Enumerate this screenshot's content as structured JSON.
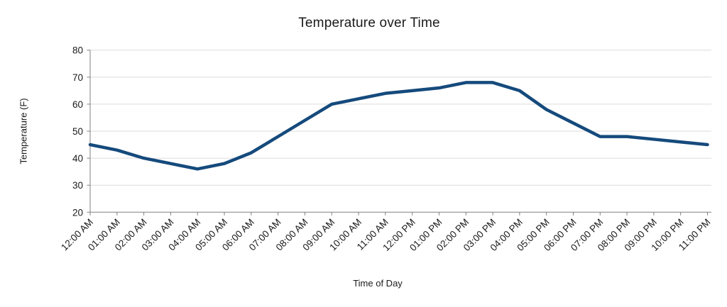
{
  "chart_data": {
    "type": "line",
    "title": "Temperature over Time",
    "xlabel": "Time of Day",
    "ylabel": "Temperature (F)",
    "categories": [
      "12:00 AM",
      "01:00 AM",
      "02:00 AM",
      "03:00 AM",
      "04:00 AM",
      "05:00 AM",
      "06:00 AM",
      "07:00 AM",
      "08:00 AM",
      "09:00 AM",
      "10:00 AM",
      "11:00 AM",
      "12:00 PM",
      "01:00 PM",
      "02:00 PM",
      "03:00 PM",
      "04:00 PM",
      "05:00 PM",
      "06:00 PM",
      "07:00 PM",
      "08:00 PM",
      "09:00 PM",
      "10:00 PM",
      "11:00 PM"
    ],
    "series": [
      {
        "name": "Temperature",
        "values": [
          45,
          43,
          40,
          38,
          36,
          38,
          42,
          48,
          54,
          60,
          62,
          64,
          65,
          66,
          68,
          68,
          65,
          58,
          53,
          48,
          48,
          47,
          46,
          45
        ]
      }
    ],
    "ylim": [
      20,
      80
    ],
    "y_ticks": [
      20,
      30,
      40,
      50,
      60,
      70,
      80
    ],
    "grid": true,
    "legend_position": "none",
    "colors": {
      "line": "#154a7c",
      "grid": "#dcdcdc",
      "axis": "#808080",
      "text": "#1a1a1a"
    }
  }
}
